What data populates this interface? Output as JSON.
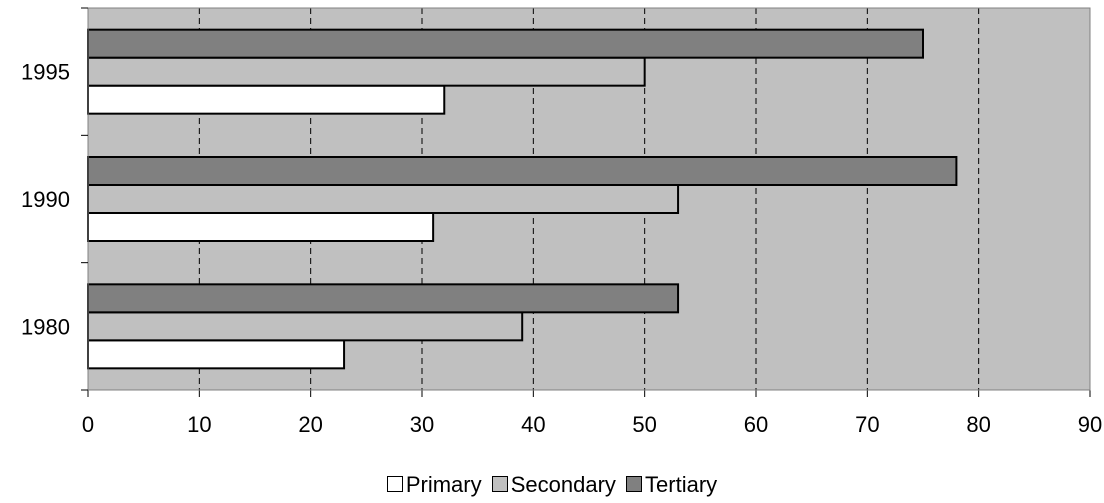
{
  "chart_data": {
    "type": "bar",
    "orientation": "horizontal",
    "categories": [
      "1980",
      "1990",
      "1995"
    ],
    "series": [
      {
        "name": "Primary",
        "values": [
          23,
          31,
          32
        ],
        "color": "#ffffff"
      },
      {
        "name": "Secondary",
        "values": [
          39,
          53,
          50
        ],
        "color": "#c0c0c0"
      },
      {
        "name": "Tertiary",
        "values": [
          53,
          78,
          75
        ],
        "color": "#808080"
      }
    ],
    "xlim": [
      0,
      90
    ],
    "x_ticks": [
      "0",
      "10",
      "20",
      "30",
      "40",
      "50",
      "60",
      "70",
      "80",
      "90"
    ],
    "plot_background": "#c0c0c0",
    "gridlines": "vertical-dashed",
    "legend_position": "bottom"
  }
}
